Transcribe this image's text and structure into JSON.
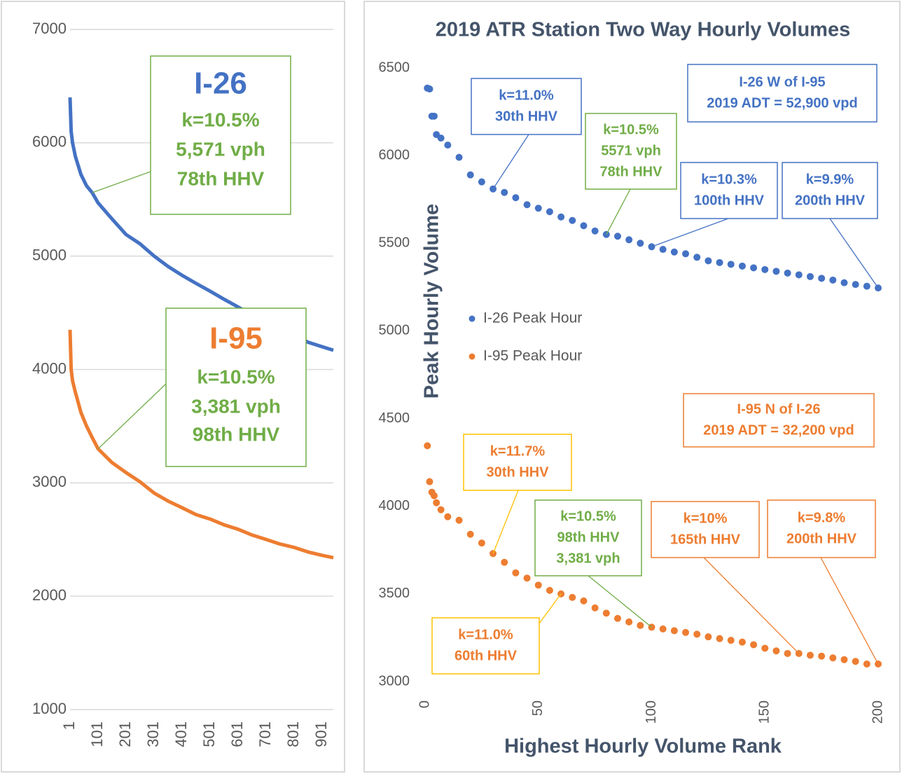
{
  "chart_data": [
    {
      "type": "line",
      "xlim": [
        1,
        940
      ],
      "xticks": [
        1,
        101,
        201,
        301,
        401,
        501,
        601,
        701,
        801,
        901
      ],
      "ylim": [
        1000,
        7000
      ],
      "yticks": [
        1000,
        2000,
        3000,
        4000,
        5000,
        6000,
        7000
      ],
      "grid": true,
      "x": [
        1,
        5,
        10,
        20,
        40,
        60,
        80,
        101,
        150,
        201,
        250,
        301,
        350,
        401,
        450,
        501,
        550,
        601,
        650,
        701,
        750,
        801,
        850,
        901,
        940
      ],
      "series": [
        {
          "color": "#4472c4",
          "values": [
            6400,
            6100,
            6000,
            5880,
            5720,
            5620,
            5560,
            5470,
            5330,
            5190,
            5110,
            5000,
            4910,
            4830,
            4760,
            4690,
            4620,
            4550,
            4480,
            4420,
            4360,
            4300,
            4240,
            4200,
            4170
          ]
        },
        {
          "color": "#ed7d31",
          "values": [
            4350,
            4000,
            3900,
            3800,
            3620,
            3500,
            3400,
            3300,
            3180,
            3090,
            3010,
            2910,
            2840,
            2780,
            2720,
            2680,
            2630,
            2590,
            2540,
            2500,
            2460,
            2430,
            2390,
            2360,
            2340
          ]
        }
      ],
      "annotations": [
        {
          "title": "I-26",
          "title_color": "#4472c4",
          "color": "#70ad47",
          "border": "#70ad47",
          "lines": [
            "k=10.5%",
            "5,571 vph",
            "78th HHV"
          ]
        },
        {
          "title": "I-95",
          "title_color": "#ed7d31",
          "color": "#70ad47",
          "border": "#70ad47",
          "lines": [
            "k=10.5%",
            "3,381 vph",
            "98th HHV"
          ]
        }
      ]
    },
    {
      "type": "scatter",
      "title": "2019 ATR Station Two Way Hourly Volumes",
      "x_label": "Highest Hourly Volume Rank",
      "y_label": "Peak Hourly Volume",
      "xlim": [
        0,
        200
      ],
      "xticks": [
        0,
        50,
        100,
        150,
        200
      ],
      "ylim": [
        3000,
        6500
      ],
      "yticks": [
        3000,
        3500,
        4000,
        4500,
        5000,
        5500,
        6000,
        6500
      ],
      "grid": false,
      "x": [
        1,
        2,
        3,
        4,
        5,
        7,
        10,
        15,
        20,
        25,
        30,
        35,
        40,
        45,
        50,
        55,
        60,
        65,
        70,
        75,
        80,
        85,
        90,
        95,
        100,
        105,
        110,
        115,
        120,
        125,
        130,
        135,
        140,
        145,
        150,
        155,
        160,
        165,
        170,
        175,
        180,
        185,
        190,
        195,
        200
      ],
      "series": [
        {
          "name": "I-26 Peak Hour",
          "color": "#4472c4",
          "values": [
            6385,
            6380,
            6225,
            6225,
            6120,
            6100,
            6060,
            5990,
            5890,
            5850,
            5810,
            5790,
            5760,
            5720,
            5700,
            5680,
            5650,
            5630,
            5600,
            5570,
            5550,
            5540,
            5520,
            5500,
            5480,
            5465,
            5450,
            5440,
            5420,
            5400,
            5390,
            5380,
            5370,
            5360,
            5350,
            5340,
            5330,
            5320,
            5310,
            5300,
            5290,
            5275,
            5265,
            5255,
            5245
          ]
        },
        {
          "name": "I-95 Peak Hour",
          "color": "#ed7d31",
          "values": [
            4345,
            4140,
            4080,
            4060,
            4020,
            3980,
            3940,
            3920,
            3840,
            3790,
            3730,
            3680,
            3620,
            3590,
            3550,
            3520,
            3500,
            3480,
            3460,
            3420,
            3390,
            3360,
            3340,
            3320,
            3310,
            3300,
            3290,
            3280,
            3270,
            3255,
            3245,
            3235,
            3225,
            3210,
            3190,
            3175,
            3160,
            3160,
            3150,
            3145,
            3135,
            3125,
            3115,
            3100,
            3100
          ]
        }
      ],
      "annotations": [
        {
          "color": "#4472c4",
          "border": "#4472c4",
          "lines": [
            "I-26 W of I-95",
            "2019 ADT = 52,900 vpd"
          ]
        },
        {
          "color": "#4472c4",
          "border": "#4472c4",
          "lines": [
            "k=11.0%",
            "30th HHV"
          ]
        },
        {
          "color": "#70ad47",
          "border": "#70ad47",
          "lines": [
            "k=10.5%",
            "5571 vph",
            "78th HHV"
          ]
        },
        {
          "color": "#4472c4",
          "border": "#4472c4",
          "lines": [
            "k=10.3%",
            "100th HHV"
          ]
        },
        {
          "color": "#4472c4",
          "border": "#4472c4",
          "lines": [
            "k=9.9%",
            "200th HHV"
          ]
        },
        {
          "color": "#ed7d31",
          "border": "#ed7d31",
          "lines": [
            "I-95 N of I-26",
            "2019 ADT  = 32,200 vpd"
          ]
        },
        {
          "color": "#ed7d31",
          "border": "#ffc000",
          "lines": [
            "k=11.7%",
            "30th HHV"
          ]
        },
        {
          "color": "#70ad47",
          "border": "#70ad47",
          "lines": [
            "k=10.5%",
            "98th HHV",
            "3,381 vph"
          ]
        },
        {
          "color": "#ed7d31",
          "border": "#ed7d31",
          "lines": [
            "k=10%",
            "165th HHV"
          ]
        },
        {
          "color": "#ed7d31",
          "border": "#ed7d31",
          "lines": [
            "k=9.8%",
            "200th HHV"
          ]
        },
        {
          "color": "#ed7d31",
          "border": "#ffc000",
          "lines": [
            "k=11.0%",
            "60th HHV"
          ]
        }
      ]
    }
  ]
}
